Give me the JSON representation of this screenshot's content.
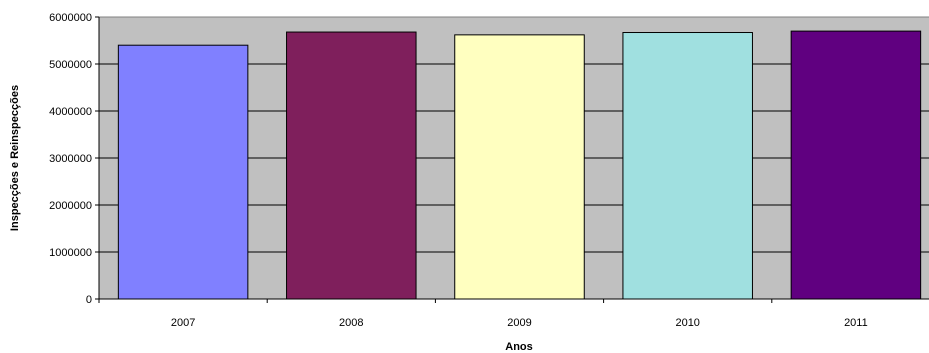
{
  "chart_data": {
    "type": "bar",
    "title": "",
    "xlabel": "Anos",
    "ylabel": "Inspecções e Reinspecções",
    "categories": [
      "2007",
      "2008",
      "2009",
      "2010",
      "2011"
    ],
    "values": [
      5400000,
      5680000,
      5620000,
      5670000,
      5700000
    ],
    "colors": [
      "#8080ff",
      "#7f1f5c",
      "#ffffc0",
      "#a0e0e0",
      "#600080"
    ],
    "ylim": [
      0,
      6000000
    ],
    "yticks": [
      "0",
      "1000000",
      "2000000",
      "3000000",
      "4000000",
      "5000000",
      "6000000"
    ],
    "plot_background": "#c0c0c0",
    "grid": true,
    "legend": "none"
  }
}
